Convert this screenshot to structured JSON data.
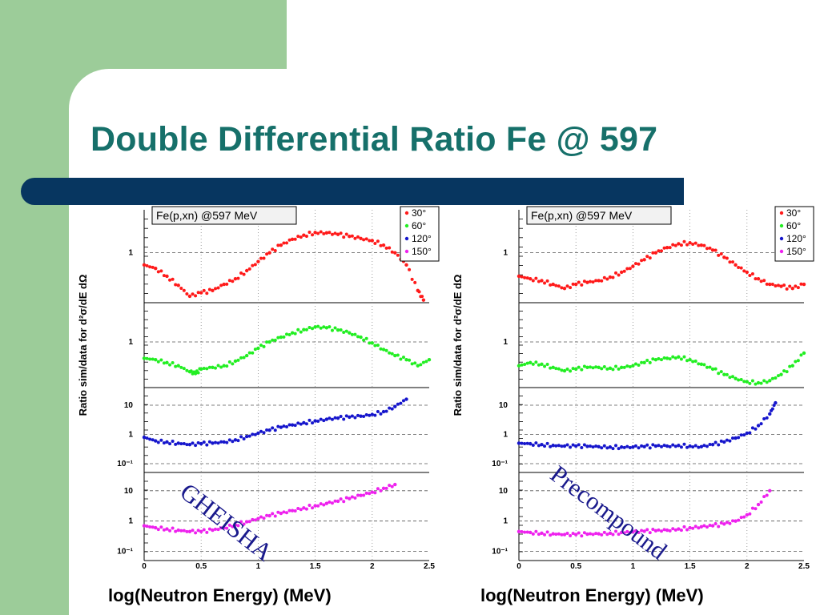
{
  "slide": {
    "title": "Double Differential Ratio Fe @ 597",
    "colors": {
      "green": "#9ccc99",
      "bar": "#073660",
      "title": "#16706a",
      "annotation": "#1a1a8c"
    }
  },
  "chart_data": [
    {
      "type": "scatter",
      "title": "Fe(p,xn) @597 MeV",
      "xlabel": "log(Neutron Energy) (MeV)",
      "ylabel": "Ratio sim/data for d²σ/dE dΩ",
      "xlim": [
        0,
        2.5
      ],
      "xticks": [
        "0",
        "0.5",
        "1",
        "1.5",
        "2",
        "2.5"
      ],
      "annotation": "GHEISHA",
      "legend": {
        "placement": "top-right",
        "entries": [
          "30°",
          "60°",
          "120°",
          "150°"
        ]
      },
      "grid": true,
      "series": [
        {
          "name": "30°",
          "color": "#ff1a1a",
          "scale": "log",
          "ylim": [
            0.4,
            2.2
          ],
          "yticks": [
            {
              "v": 1,
              "label": "1"
            }
          ],
          "x": [
            0.0,
            0.1,
            0.2,
            0.3,
            0.4,
            0.5,
            0.6,
            0.7,
            0.8,
            0.9,
            1.0,
            1.1,
            1.2,
            1.3,
            1.4,
            1.5,
            1.6,
            1.7,
            1.8,
            1.9,
            2.0,
            2.1,
            2.2,
            2.3,
            2.4,
            2.45
          ],
          "y": [
            0.8,
            0.75,
            0.65,
            0.55,
            0.45,
            0.48,
            0.5,
            0.56,
            0.62,
            0.72,
            0.85,
            1.0,
            1.15,
            1.28,
            1.38,
            1.45,
            1.44,
            1.4,
            1.35,
            1.3,
            1.25,
            1.15,
            1.0,
            0.8,
            0.5,
            0.42
          ]
        },
        {
          "name": "60°",
          "color": "#22ee22",
          "scale": "log",
          "ylim": [
            0.4,
            2.2
          ],
          "yticks": [
            {
              "v": 1,
              "label": "1"
            }
          ],
          "x": [
            0.0,
            0.1,
            0.2,
            0.3,
            0.4,
            0.45,
            0.5,
            0.6,
            0.7,
            0.8,
            0.9,
            1.0,
            1.1,
            1.2,
            1.3,
            1.4,
            1.5,
            1.6,
            1.7,
            1.8,
            1.9,
            2.0,
            2.1,
            2.2,
            2.3,
            2.4,
            2.5
          ],
          "y": [
            0.72,
            0.7,
            0.66,
            0.62,
            0.55,
            0.53,
            0.58,
            0.6,
            0.62,
            0.68,
            0.76,
            0.88,
            1.0,
            1.1,
            1.2,
            1.28,
            1.35,
            1.33,
            1.27,
            1.2,
            1.1,
            0.98,
            0.86,
            0.76,
            0.7,
            0.62,
            0.7
          ]
        },
        {
          "name": "120°",
          "color": "#1616cc",
          "scale": "log",
          "ylim": [
            0.05,
            40
          ],
          "yticks": [
            {
              "v": 10,
              "label": "10"
            },
            {
              "v": 1,
              "label": "1"
            },
            {
              "v": 0.1,
              "label": "10⁻¹"
            }
          ],
          "x": [
            0.0,
            0.1,
            0.2,
            0.3,
            0.4,
            0.5,
            0.6,
            0.7,
            0.8,
            0.9,
            1.0,
            1.1,
            1.2,
            1.3,
            1.4,
            1.5,
            1.6,
            1.7,
            1.8,
            1.9,
            2.0,
            2.1,
            2.2,
            2.3
          ],
          "y": [
            0.8,
            0.6,
            0.55,
            0.5,
            0.45,
            0.48,
            0.5,
            0.55,
            0.65,
            0.85,
            1.1,
            1.4,
            1.75,
            2.1,
            2.5,
            2.9,
            3.3,
            3.6,
            3.9,
            4.2,
            4.8,
            6.0,
            9.0,
            16.0
          ]
        },
        {
          "name": "150°",
          "color": "#ee22ee",
          "scale": "log",
          "ylim": [
            0.05,
            40
          ],
          "yticks": [
            {
              "v": 10,
              "label": "10"
            },
            {
              "v": 1,
              "label": "1"
            },
            {
              "v": 0.1,
              "label": "10⁻¹"
            }
          ],
          "x": [
            0.0,
            0.1,
            0.2,
            0.3,
            0.4,
            0.5,
            0.6,
            0.7,
            0.8,
            0.9,
            1.0,
            1.1,
            1.2,
            1.3,
            1.4,
            1.5,
            1.6,
            1.7,
            1.8,
            1.9,
            2.0,
            2.1,
            2.2
          ],
          "y": [
            0.7,
            0.6,
            0.55,
            0.5,
            0.45,
            0.45,
            0.5,
            0.6,
            0.75,
            0.95,
            1.2,
            1.5,
            1.8,
            2.2,
            2.7,
            3.2,
            3.8,
            4.5,
            5.5,
            7.0,
            9.0,
            12.0,
            16.0
          ]
        }
      ]
    },
    {
      "type": "scatter",
      "title": "Fe(p,xn) @597 MeV",
      "xlabel": "log(Neutron Energy) (MeV)",
      "ylabel": "Ratio sim/data for d²σ/dE dΩ",
      "xlim": [
        0,
        2.5
      ],
      "xticks": [
        "0",
        "0.5",
        "1",
        "1.5",
        "2",
        "2.5"
      ],
      "annotation": "Precompound",
      "legend": {
        "placement": "top-right",
        "entries": [
          "30°",
          "60°",
          "120°",
          "150°"
        ]
      },
      "grid": true,
      "series": [
        {
          "name": "30°",
          "color": "#ff1a1a",
          "scale": "log",
          "ylim": [
            0.4,
            2.2
          ],
          "yticks": [
            {
              "v": 1,
              "label": "1"
            }
          ],
          "x": [
            0.0,
            0.1,
            0.2,
            0.3,
            0.4,
            0.5,
            0.6,
            0.7,
            0.8,
            0.9,
            1.0,
            1.1,
            1.2,
            1.3,
            1.4,
            1.5,
            1.6,
            1.7,
            1.8,
            1.9,
            2.0,
            2.1,
            2.2,
            2.3,
            2.4,
            2.5
          ],
          "y": [
            0.65,
            0.62,
            0.6,
            0.56,
            0.52,
            0.56,
            0.58,
            0.6,
            0.64,
            0.7,
            0.78,
            0.88,
            1.0,
            1.1,
            1.18,
            1.2,
            1.15,
            1.05,
            0.92,
            0.8,
            0.7,
            0.62,
            0.56,
            0.54,
            0.52,
            0.56
          ]
        },
        {
          "name": "60°",
          "color": "#22ee22",
          "scale": "log",
          "ylim": [
            0.4,
            2.2
          ],
          "yticks": [
            {
              "v": 1,
              "label": "1"
            }
          ],
          "x": [
            0.0,
            0.1,
            0.2,
            0.3,
            0.4,
            0.5,
            0.6,
            0.7,
            0.8,
            0.9,
            1.0,
            1.1,
            1.2,
            1.3,
            1.4,
            1.5,
            1.6,
            1.7,
            1.8,
            1.9,
            2.0,
            2.1,
            2.2,
            2.3,
            2.4,
            2.5
          ],
          "y": [
            0.62,
            0.66,
            0.64,
            0.6,
            0.56,
            0.58,
            0.6,
            0.6,
            0.59,
            0.6,
            0.62,
            0.66,
            0.7,
            0.72,
            0.74,
            0.7,
            0.64,
            0.58,
            0.52,
            0.48,
            0.45,
            0.44,
            0.46,
            0.52,
            0.62,
            0.8
          ]
        },
        {
          "name": "120°",
          "color": "#1616cc",
          "scale": "log",
          "ylim": [
            0.05,
            40
          ],
          "yticks": [
            {
              "v": 10,
              "label": "10"
            },
            {
              "v": 1,
              "label": "1"
            },
            {
              "v": 0.1,
              "label": "10⁻¹"
            }
          ],
          "x": [
            0.0,
            0.1,
            0.2,
            0.3,
            0.4,
            0.5,
            0.6,
            0.7,
            0.8,
            0.9,
            1.0,
            1.1,
            1.2,
            1.3,
            1.4,
            1.5,
            1.6,
            1.7,
            1.8,
            1.9,
            2.0,
            2.1,
            2.2,
            2.25
          ],
          "y": [
            0.5,
            0.48,
            0.45,
            0.42,
            0.4,
            0.4,
            0.39,
            0.38,
            0.37,
            0.37,
            0.37,
            0.38,
            0.4,
            0.4,
            0.42,
            0.4,
            0.38,
            0.45,
            0.55,
            0.75,
            1.1,
            2.0,
            5.0,
            12.0
          ]
        },
        {
          "name": "150°",
          "color": "#ee22ee",
          "scale": "log",
          "ylim": [
            0.05,
            40
          ],
          "yticks": [
            {
              "v": 10,
              "label": "10"
            },
            {
              "v": 1,
              "label": "1"
            },
            {
              "v": 0.1,
              "label": "10⁻¹"
            }
          ],
          "x": [
            0.0,
            0.1,
            0.2,
            0.3,
            0.4,
            0.5,
            0.6,
            0.7,
            0.8,
            0.9,
            1.0,
            1.1,
            1.2,
            1.3,
            1.4,
            1.5,
            1.6,
            1.7,
            1.8,
            1.9,
            2.0,
            2.1,
            2.2
          ],
          "y": [
            0.45,
            0.42,
            0.4,
            0.38,
            0.36,
            0.36,
            0.37,
            0.38,
            0.4,
            0.42,
            0.44,
            0.46,
            0.48,
            0.5,
            0.55,
            0.6,
            0.65,
            0.7,
            0.8,
            1.0,
            1.6,
            3.5,
            10.0
          ]
        }
      ]
    }
  ]
}
